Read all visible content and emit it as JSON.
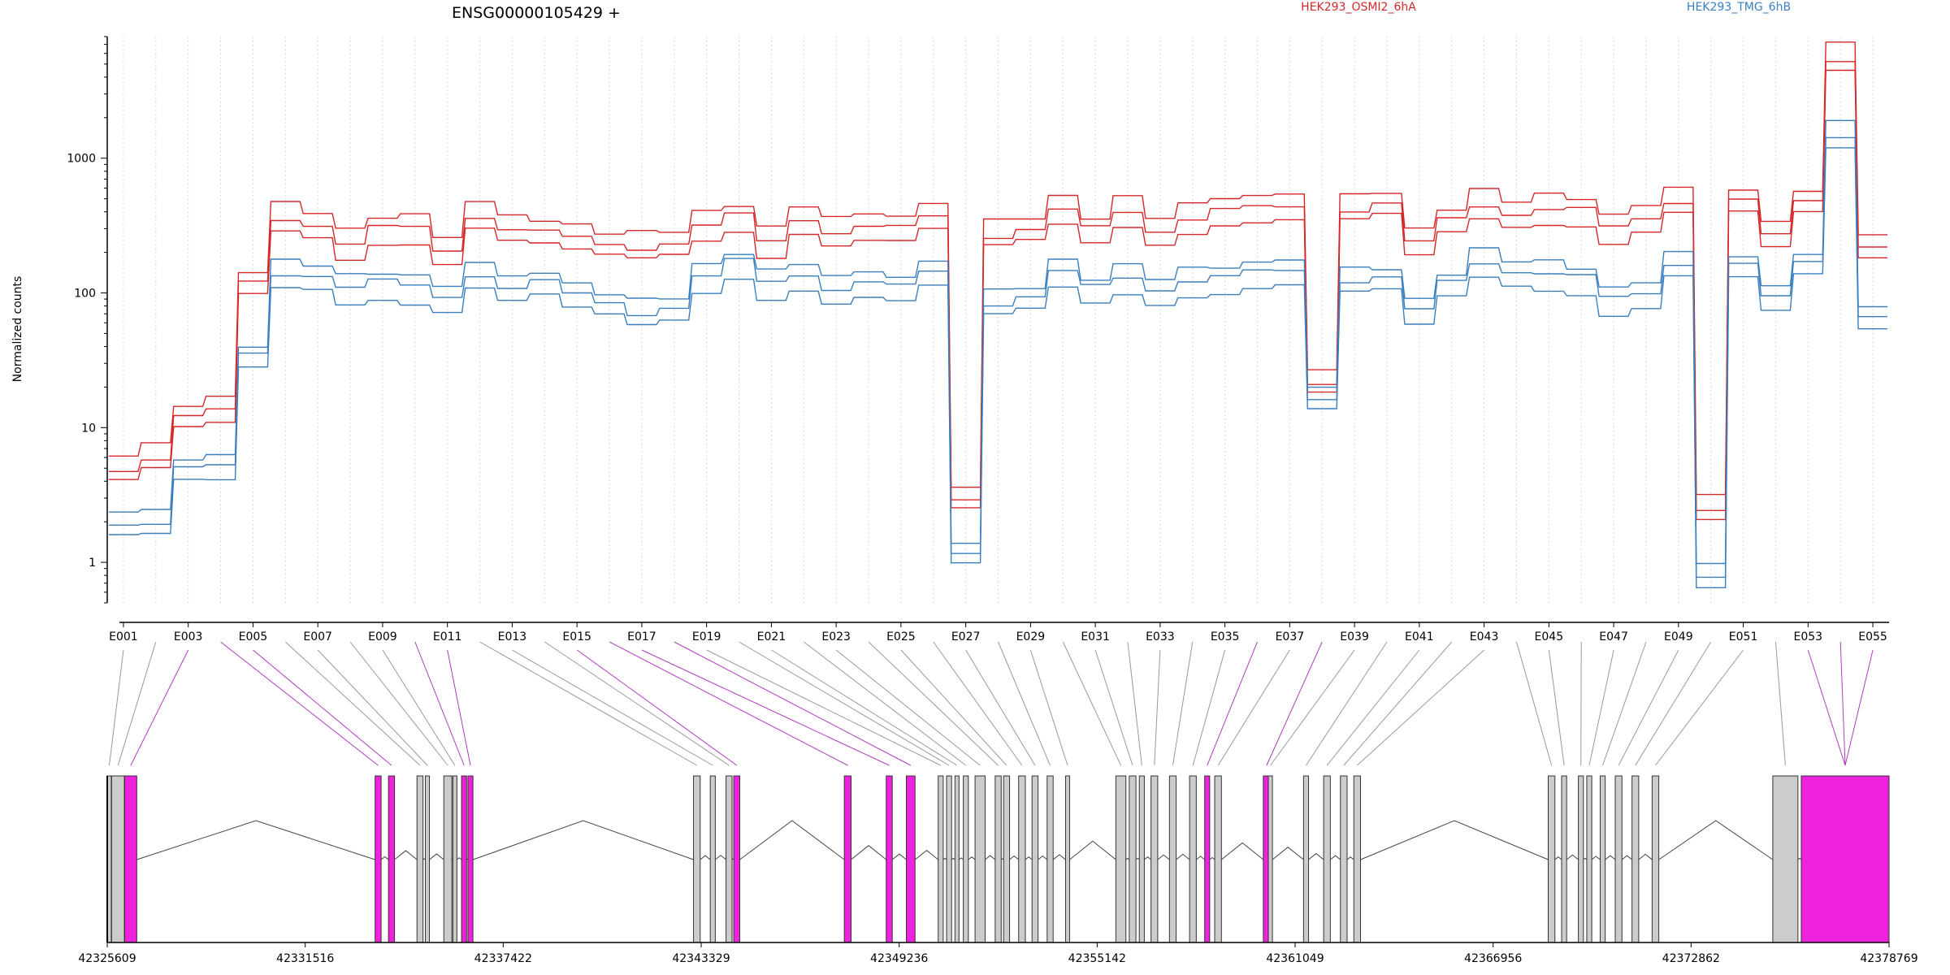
{
  "chart_data": {
    "type": "line",
    "title": "ENSG00000105429 +",
    "ylabel": "Normalized counts",
    "xlabel": "",
    "yscale": "log",
    "ylim": [
      0.5,
      8000
    ],
    "yticks": [
      "1",
      "10",
      "100",
      "1000"
    ],
    "grid": "vertical-dotted",
    "legend": "top",
    "series": [
      {
        "name": "HEK293_OSMI2_6hA",
        "color": "#d62728"
      },
      {
        "name": "HEK293_TMG_6hB",
        "color": "#3a7fbf"
      }
    ],
    "exon_tick_labels": [
      "E001",
      "E003",
      "E005",
      "E007",
      "E009",
      "E011",
      "E013",
      "E015",
      "E017",
      "E019",
      "E021",
      "E023",
      "E025",
      "E027",
      "E029",
      "E031",
      "E033",
      "E035",
      "E037",
      "E039",
      "E041",
      "E043",
      "E045",
      "E047",
      "E049",
      "E051",
      "E053",
      "E055"
    ],
    "red_profile": [
      5,
      6,
      12,
      13,
      120,
      360,
      330,
      230,
      300,
      300,
      210,
      380,
      300,
      280,
      250,
      230,
      220,
      240,
      310,
      370,
      240,
      360,
      290,
      310,
      300,
      360,
      3,
      270,
      300,
      400,
      300,
      400,
      300,
      360,
      410,
      420,
      430,
      22,
      420,
      460,
      230,
      350,
      450,
      400,
      420,
      410,
      300,
      360,
      490,
      2.5,
      480,
      260,
      480,
      5500,
      230
    ],
    "blue_profile": [
      2,
      2,
      5,
      5,
      35,
      140,
      140,
      110,
      120,
      110,
      95,
      140,
      110,
      120,
      95,
      85,
      72,
      80,
      130,
      170,
      120,
      140,
      110,
      120,
      110,
      140,
      1.2,
      85,
      95,
      140,
      110,
      130,
      110,
      125,
      130,
      140,
      145,
      17,
      125,
      130,
      72,
      120,
      170,
      150,
      140,
      130,
      90,
      100,
      170,
      0.8,
      160,
      90,
      170,
      1500,
      70
    ],
    "genomic_axis_labels": [
      "42325609",
      "42331516",
      "42337422",
      "42343329",
      "42349236",
      "42355142",
      "42361049",
      "42366956",
      "42372862",
      "42378769"
    ],
    "genomic_range": [
      42325609,
      42378769
    ]
  }
}
